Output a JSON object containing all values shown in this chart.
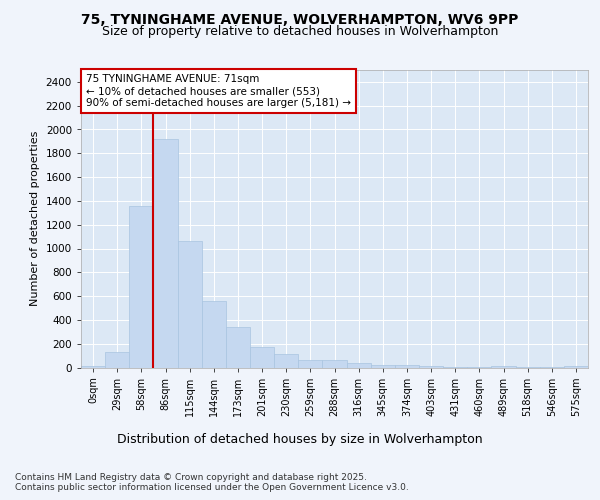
{
  "title_line1": "75, TYNINGHAME AVENUE, WOLVERHAMPTON, WV6 9PP",
  "title_line2": "Size of property relative to detached houses in Wolverhampton",
  "xlabel": "Distribution of detached houses by size in Wolverhampton",
  "ylabel": "Number of detached properties",
  "footer_line1": "Contains HM Land Registry data © Crown copyright and database right 2025.",
  "footer_line2": "Contains public sector information licensed under the Open Government Licence v3.0.",
  "property_label": "75 TYNINGHAME AVENUE: 71sqm",
  "annotation_line1": "← 10% of detached houses are smaller (553)",
  "annotation_line2": "90% of semi-detached houses are larger (5,181) →",
  "bin_labels": [
    "0sqm",
    "29sqm",
    "58sqm",
    "86sqm",
    "115sqm",
    "144sqm",
    "173sqm",
    "201sqm",
    "230sqm",
    "259sqm",
    "288sqm",
    "316sqm",
    "345sqm",
    "374sqm",
    "403sqm",
    "431sqm",
    "460sqm",
    "489sqm",
    "518sqm",
    "546sqm",
    "575sqm"
  ],
  "bar_values": [
    10,
    130,
    1360,
    1920,
    1060,
    560,
    340,
    170,
    110,
    60,
    60,
    35,
    25,
    20,
    15,
    5,
    5,
    15,
    2,
    2,
    10
  ],
  "bar_color": "#c5d8f0",
  "bar_edge_color": "#a8c4e0",
  "red_line_x": 2.5,
  "ylim": [
    0,
    2500
  ],
  "yticks": [
    0,
    200,
    400,
    600,
    800,
    1000,
    1200,
    1400,
    1600,
    1800,
    2000,
    2200,
    2400
  ],
  "background_color": "#f0f4fb",
  "plot_background_color": "#dce8f5",
  "grid_color": "#ffffff",
  "annotation_box_facecolor": "#ffffff",
  "annotation_box_edgecolor": "#cc0000",
  "red_line_color": "#cc0000"
}
